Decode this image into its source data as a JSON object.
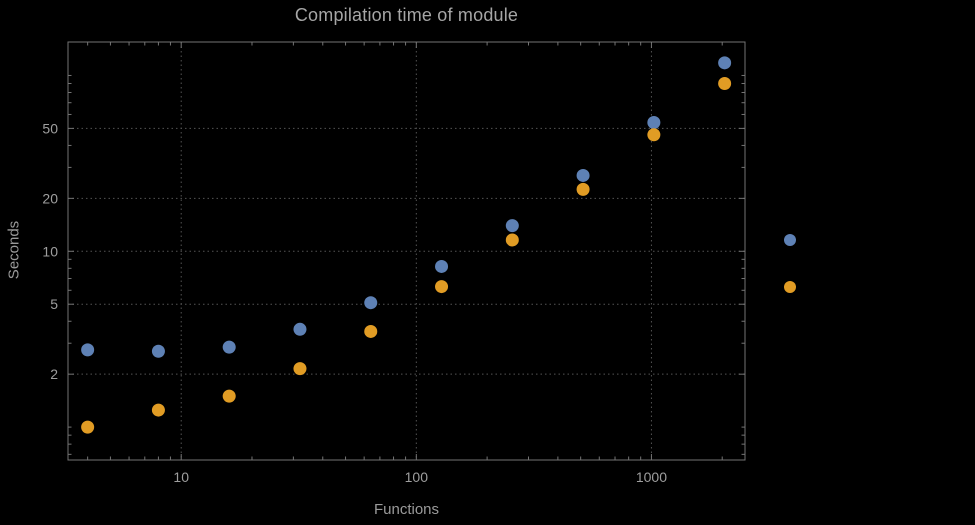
{
  "colors": {
    "background": "#000000",
    "frame": "#747474",
    "grid": "#545454",
    "text": "#9e9e9e",
    "series_blue": "#5e81b5",
    "series_orange": "#e19c24"
  },
  "chart_data": {
    "type": "scatter",
    "title": "Compilation time of module",
    "xlabel": "Functions",
    "ylabel": "Seconds",
    "xscale": "log",
    "yscale": "log",
    "grid": true,
    "grid_style": "dotted",
    "xlim": [
      3.3,
      2500
    ],
    "ylim": [
      0.65,
      155
    ],
    "xticks": [
      10,
      100,
      1000
    ],
    "yticks": [
      2,
      5,
      10,
      20,
      50
    ],
    "x": [
      4,
      8,
      16,
      32,
      64,
      128,
      256,
      512,
      1024,
      2048
    ],
    "series": [
      {
        "name": "blue",
        "color": "#5e81b5",
        "values": [
          2.75,
          2.7,
          2.85,
          3.6,
          5.1,
          8.2,
          14,
          27,
          54,
          118
        ]
      },
      {
        "name": "orange",
        "color": "#e19c24",
        "values": [
          1.0,
          1.25,
          1.5,
          2.15,
          3.5,
          6.3,
          11.6,
          22.5,
          46,
          90
        ]
      }
    ],
    "legend": {
      "position": "right",
      "markers": [
        {
          "name": "blue",
          "color": "#5e81b5",
          "label": ""
        },
        {
          "name": "orange",
          "color": "#e19c24",
          "label": ""
        }
      ]
    }
  }
}
